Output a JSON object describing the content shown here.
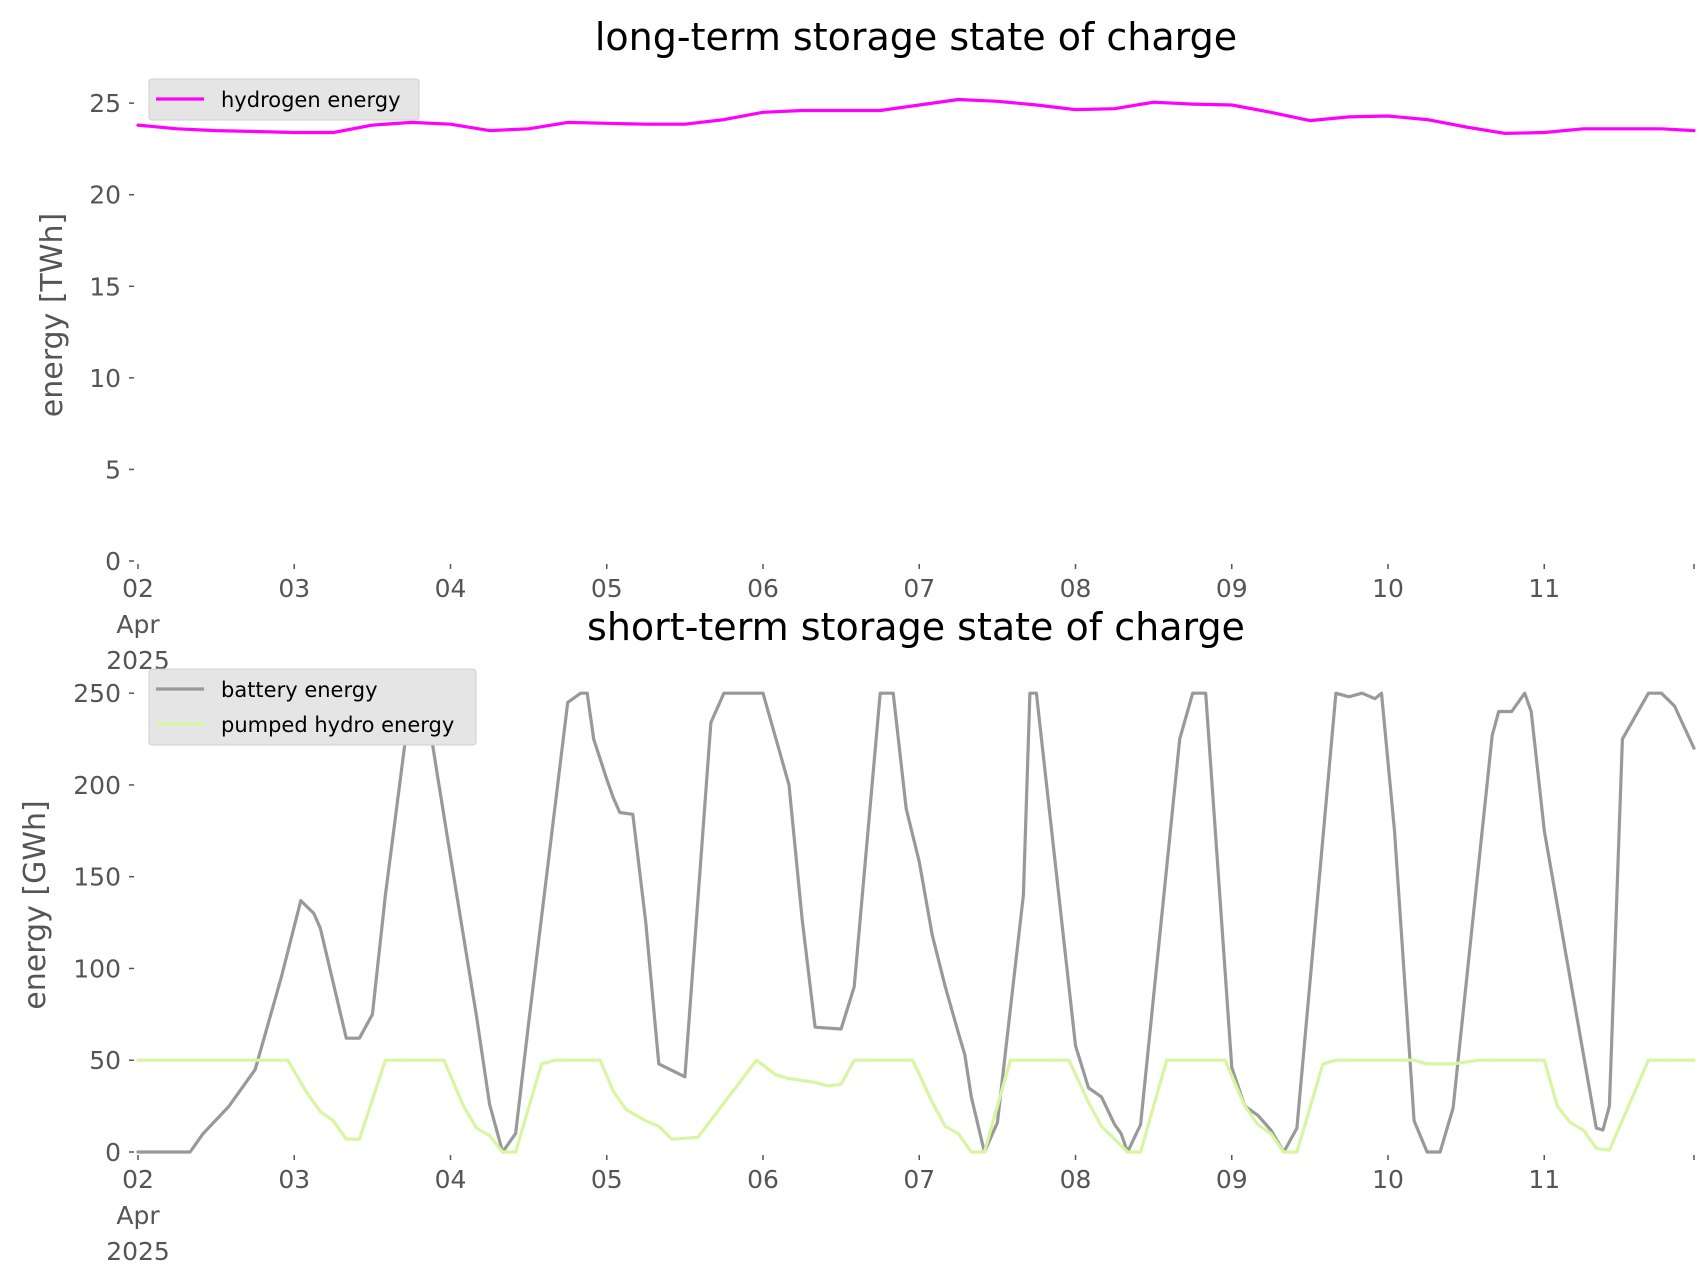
{
  "chart_data": [
    {
      "type": "line",
      "title": "long-term storage state of charge",
      "xlabel": "",
      "ylabel": "energy [TWh]",
      "xlim": [
        "2025-04-02 00:00",
        "2025-04-11 23:00"
      ],
      "ylim": [
        0,
        25.5
      ],
      "yticks": [
        0,
        5,
        10,
        15,
        20,
        25
      ],
      "ytick_labels": [
        "0",
        "5",
        "10",
        "15",
        "20",
        "25"
      ],
      "x_tick_dates": [
        "2025-04-02",
        "2025-04-03",
        "2025-04-04",
        "2025-04-05",
        "2025-04-06",
        "2025-04-07",
        "2025-04-08",
        "2025-04-09",
        "2025-04-10",
        "2025-04-11"
      ],
      "x_tick_labels": [
        [
          "02",
          "Apr",
          "2025"
        ],
        [
          "03"
        ],
        [
          "04"
        ],
        [
          "05"
        ],
        [
          "06"
        ],
        [
          "07"
        ],
        [
          "08"
        ],
        [
          "09"
        ],
        [
          "10"
        ],
        [
          "11"
        ]
      ],
      "grid": false,
      "legend_position": "top-left",
      "series": [
        {
          "name": "hydrogen energy",
          "color": "#ff00ff",
          "x": [
            "2025-04-02 00:00",
            "2025-04-02 06:00",
            "2025-04-02 12:00",
            "2025-04-02 18:00",
            "2025-04-03 00:00",
            "2025-04-03 06:00",
            "2025-04-03 12:00",
            "2025-04-03 18:00",
            "2025-04-04 00:00",
            "2025-04-04 06:00",
            "2025-04-04 12:00",
            "2025-04-04 18:00",
            "2025-04-05 00:00",
            "2025-04-05 06:00",
            "2025-04-05 12:00",
            "2025-04-05 18:00",
            "2025-04-06 00:00",
            "2025-04-06 06:00",
            "2025-04-06 12:00",
            "2025-04-06 18:00",
            "2025-04-07 00:00",
            "2025-04-07 06:00",
            "2025-04-07 12:00",
            "2025-04-07 18:00",
            "2025-04-08 00:00",
            "2025-04-08 06:00",
            "2025-04-08 12:00",
            "2025-04-08 18:00",
            "2025-04-09 00:00",
            "2025-04-09 06:00",
            "2025-04-09 12:00",
            "2025-04-09 18:00",
            "2025-04-10 00:00",
            "2025-04-10 06:00",
            "2025-04-10 12:00",
            "2025-04-10 18:00",
            "2025-04-11 00:00",
            "2025-04-11 06:00",
            "2025-04-11 12:00",
            "2025-04-11 18:00",
            "2025-04-11 23:00"
          ],
          "y": [
            23.8,
            23.6,
            23.5,
            23.45,
            23.4,
            23.4,
            23.8,
            23.95,
            23.85,
            23.5,
            23.6,
            23.95,
            23.9,
            23.85,
            23.85,
            24.1,
            24.5,
            24.6,
            24.6,
            24.6,
            24.9,
            25.2,
            25.1,
            24.9,
            24.65,
            24.7,
            25.05,
            24.95,
            24.9,
            24.5,
            24.05,
            24.25,
            24.3,
            24.1,
            23.7,
            23.35,
            23.4,
            23.6,
            23.6,
            23.6,
            23.5
          ]
        }
      ]
    },
    {
      "type": "line",
      "title": "short-term storage state of charge",
      "xlabel": "",
      "ylabel": "energy [GWh]",
      "xlim": [
        "2025-04-02 00:00",
        "2025-04-11 23:00"
      ],
      "ylim": [
        0,
        255
      ],
      "yticks": [
        0,
        50,
        100,
        150,
        200,
        250
      ],
      "ytick_labels": [
        "0",
        "50",
        "100",
        "150",
        "200",
        "250"
      ],
      "x_tick_dates": [
        "2025-04-02",
        "2025-04-03",
        "2025-04-04",
        "2025-04-05",
        "2025-04-06",
        "2025-04-07",
        "2025-04-08",
        "2025-04-09",
        "2025-04-10",
        "2025-04-11"
      ],
      "x_tick_labels": [
        [
          "02",
          "Apr",
          "2025"
        ],
        [
          "03"
        ],
        [
          "04"
        ],
        [
          "05"
        ],
        [
          "06"
        ],
        [
          "07"
        ],
        [
          "08"
        ],
        [
          "09"
        ],
        [
          "10"
        ],
        [
          "11"
        ]
      ],
      "grid": false,
      "legend_position": "top-left",
      "series": [
        {
          "name": "battery energy",
          "color": "#999999",
          "x": [
            "2025-04-02 00:00",
            "2025-04-02 08:00",
            "2025-04-02 10:00",
            "2025-04-02 14:00",
            "2025-04-02 18:00",
            "2025-04-02 22:00",
            "2025-04-03 01:00",
            "2025-04-03 03:00",
            "2025-04-03 04:00",
            "2025-04-03 08:00",
            "2025-04-03 10:00",
            "2025-04-03 12:00",
            "2025-04-03 14:00",
            "2025-04-03 18:00",
            "2025-04-03 20:00",
            "2025-04-03 22:00",
            "2025-04-04 00:00",
            "2025-04-04 04:00",
            "2025-04-04 06:00",
            "2025-04-04 08:00",
            "2025-04-04 10:00",
            "2025-04-04 12:00",
            "2025-04-04 18:00",
            "2025-04-04 20:00",
            "2025-04-04 21:00",
            "2025-04-04 22:00",
            "2025-04-05 00:00",
            "2025-04-05 01:00",
            "2025-04-05 02:00",
            "2025-04-05 04:00",
            "2025-04-05 06:00",
            "2025-04-05 08:00",
            "2025-04-05 12:00",
            "2025-04-05 16:00",
            "2025-04-05 18:00",
            "2025-04-06 00:00",
            "2025-04-06 04:00",
            "2025-04-06 06:00",
            "2025-04-06 08:00",
            "2025-04-06 12:00",
            "2025-04-06 14:00",
            "2025-04-06 18:00",
            "2025-04-06 20:00",
            "2025-04-06 22:00",
            "2025-04-07 00:00",
            "2025-04-07 02:00",
            "2025-04-07 04:00",
            "2025-04-07 06:00",
            "2025-04-07 07:00",
            "2025-04-07 08:00",
            "2025-04-07 10:00",
            "2025-04-07 12:00",
            "2025-04-07 16:00",
            "2025-04-07 17:00",
            "2025-04-07 18:00",
            "2025-04-08 00:00",
            "2025-04-08 02:00",
            "2025-04-08 04:00",
            "2025-04-08 06:00",
            "2025-04-08 07:00",
            "2025-04-08 08:00",
            "2025-04-08 10:00",
            "2025-04-08 16:00",
            "2025-04-08 18:00",
            "2025-04-08 20:00",
            "2025-04-09 00:00",
            "2025-04-09 02:00",
            "2025-04-09 04:00",
            "2025-04-09 06:00",
            "2025-04-09 08:00",
            "2025-04-09 10:00",
            "2025-04-09 16:00",
            "2025-04-09 18:00",
            "2025-04-09 20:00",
            "2025-04-09 22:00",
            "2025-04-09 23:00",
            "2025-04-10 01:00",
            "2025-04-10 04:00",
            "2025-04-10 06:00",
            "2025-04-10 08:00",
            "2025-04-10 10:00",
            "2025-04-10 16:00",
            "2025-04-10 17:00",
            "2025-04-10 19:00",
            "2025-04-10 21:00",
            "2025-04-10 22:00",
            "2025-04-11 00:00",
            "2025-04-11 08:00",
            "2025-04-11 09:00",
            "2025-04-11 10:00",
            "2025-04-11 12:00",
            "2025-04-11 16:00",
            "2025-04-11 18:00",
            "2025-04-11 20:00",
            "2025-04-11 23:00"
          ],
          "y": [
            0,
            0,
            10,
            25,
            45,
            95,
            137,
            130,
            122,
            62,
            62,
            75,
            140,
            250,
            250,
            205,
            161,
            74,
            26,
            0,
            10,
            70,
            245,
            250,
            250,
            225,
            203,
            193,
            185,
            184,
            125,
            48,
            41,
            234,
            250,
            250,
            200,
            127,
            68,
            67,
            90,
            250,
            250,
            187,
            158,
            118,
            90,
            65,
            53,
            30,
            0,
            16,
            140,
            250,
            250,
            58,
            35,
            30,
            15,
            10,
            0,
            15,
            225,
            250,
            250,
            46,
            25,
            20,
            12,
            0,
            13,
            250,
            248,
            250,
            247,
            250,
            175,
            17,
            0,
            0,
            24,
            227,
            240,
            240,
            250,
            240,
            175,
            13,
            12,
            25,
            225,
            250,
            250,
            243,
            220
          ]
        },
        {
          "name": "pumped hydro energy",
          "color": "#d8f5a2",
          "x": [
            "2025-04-02 00:00",
            "2025-04-02 23:00",
            "2025-04-03 02:00",
            "2025-04-03 04:00",
            "2025-04-03 06:00",
            "2025-04-03 08:00",
            "2025-04-03 10:00",
            "2025-04-03 14:00",
            "2025-04-03 23:00",
            "2025-04-04 02:00",
            "2025-04-04 04:00",
            "2025-04-04 06:00",
            "2025-04-04 08:00",
            "2025-04-04 10:00",
            "2025-04-04 14:00",
            "2025-04-04 16:00",
            "2025-04-04 23:00",
            "2025-04-05 01:00",
            "2025-04-05 03:00",
            "2025-04-05 06:00",
            "2025-04-05 08:00",
            "2025-04-05 10:00",
            "2025-04-05 14:00",
            "2025-04-05 23:00",
            "2025-04-06 02:00",
            "2025-04-06 04:00",
            "2025-04-06 06:00",
            "2025-04-06 08:00",
            "2025-04-06 10:00",
            "2025-04-06 12:00",
            "2025-04-06 14:00",
            "2025-04-06 23:00",
            "2025-04-07 02:00",
            "2025-04-07 04:00",
            "2025-04-07 06:00",
            "2025-04-07 08:00",
            "2025-04-07 10:00",
            "2025-04-07 14:00",
            "2025-04-07 23:00",
            "2025-04-08 02:00",
            "2025-04-08 04:00",
            "2025-04-08 06:00",
            "2025-04-08 08:00",
            "2025-04-08 10:00",
            "2025-04-08 14:00",
            "2025-04-08 23:00",
            "2025-04-09 02:00",
            "2025-04-09 04:00",
            "2025-04-09 06:00",
            "2025-04-09 08:00",
            "2025-04-09 10:00",
            "2025-04-09 14:00",
            "2025-04-09 16:00",
            "2025-04-10 00:00",
            "2025-04-10 04:00",
            "2025-04-10 06:00",
            "2025-04-10 08:00",
            "2025-04-10 10:00",
            "2025-04-10 12:00",
            "2025-04-10 14:00",
            "2025-04-11 00:00",
            "2025-04-11 02:00",
            "2025-04-11 04:00",
            "2025-04-11 06:00",
            "2025-04-11 08:00",
            "2025-04-11 10:00",
            "2025-04-11 16:00",
            "2025-04-11 23:00"
          ],
          "y": [
            50,
            50,
            32,
            22,
            17,
            7,
            7,
            50,
            50,
            25,
            13,
            9,
            0,
            0,
            48,
            50,
            50,
            33,
            23,
            17,
            14,
            7,
            8,
            50,
            42,
            40,
            39,
            38,
            36,
            37,
            50,
            50,
            27,
            14,
            10,
            0,
            0,
            50,
            50,
            27,
            14,
            7,
            0,
            0,
            50,
            50,
            25,
            15,
            10,
            0,
            0,
            48,
            50,
            50,
            50,
            48,
            48,
            48,
            49,
            50,
            50,
            25,
            16,
            12,
            2,
            1,
            50,
            50
          ]
        }
      ]
    }
  ]
}
